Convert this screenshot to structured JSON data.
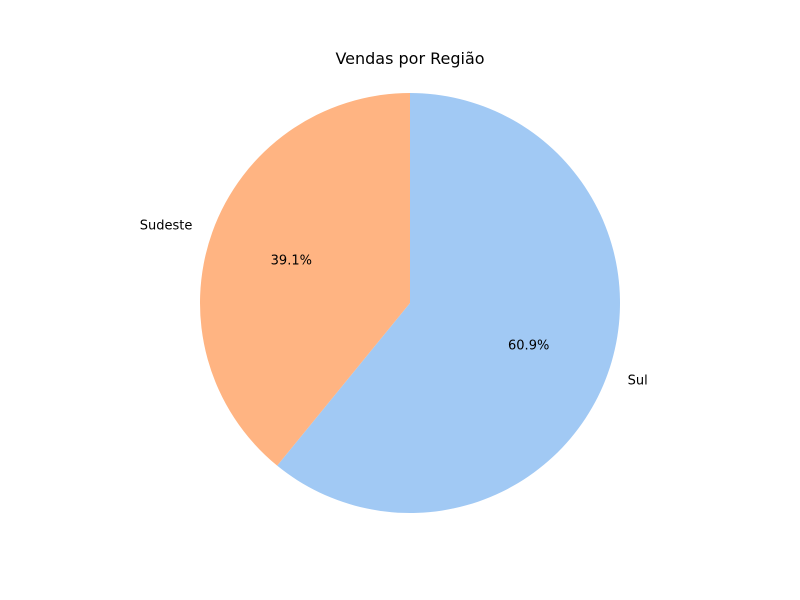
{
  "chart_data": {
    "type": "pie",
    "title": "Vendas por Região",
    "categories": [
      "Sul",
      "Sudeste"
    ],
    "values": [
      60.9,
      39.1
    ],
    "labels": [
      "60.9%",
      "39.1%"
    ],
    "colors": [
      "#a1c9f4",
      "#ffb482"
    ],
    "start_angle_deg": 90,
    "direction": "clockwise"
  }
}
